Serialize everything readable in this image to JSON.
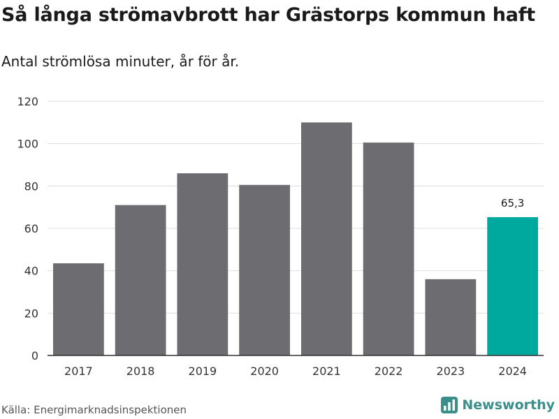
{
  "header": {
    "title": "Så långa strömavbrott har Grästorps kommun haft",
    "subtitle": "Antal strömlösa minuter, år för år."
  },
  "footer": {
    "source": "Källa: Energimarknadsinspektionen",
    "brand": "Newsworthy"
  },
  "colors": {
    "bar": "#6d6c71",
    "highlight": "#00a99d",
    "grid": "#dddddd",
    "axis": "#333333",
    "brand": "#3a8f8a"
  },
  "chart_data": {
    "type": "bar",
    "title": "Så långa strömavbrott har Grästorps kommun haft",
    "subtitle": "Antal strömlösa minuter, år för år.",
    "xlabel": "",
    "ylabel": "",
    "categories": [
      "2017",
      "2018",
      "2019",
      "2020",
      "2021",
      "2022",
      "2023",
      "2024"
    ],
    "values": [
      43.5,
      71,
      86,
      80.5,
      110,
      100.5,
      36,
      65.3
    ],
    "highlight_index": 7,
    "data_labels": [
      {
        "index": 7,
        "text": "65,3"
      }
    ],
    "ylim": [
      0,
      120
    ],
    "yticks": [
      0,
      20,
      40,
      60,
      80,
      100,
      120
    ],
    "grid": true,
    "legend": "none"
  }
}
